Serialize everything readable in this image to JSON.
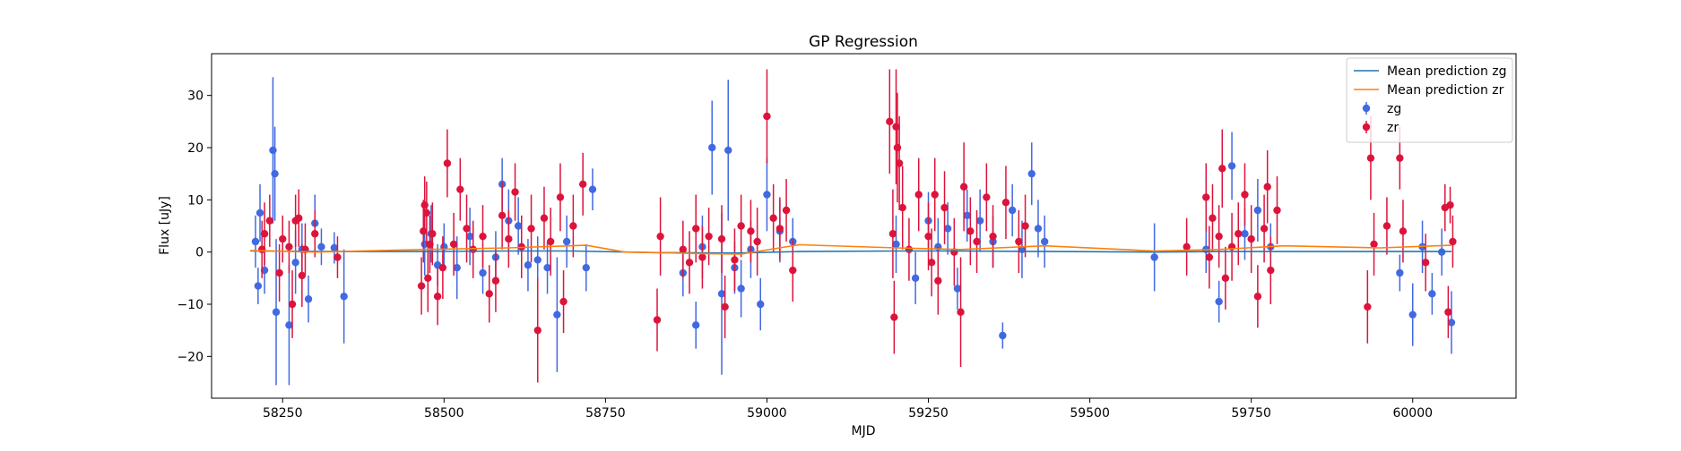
{
  "chart_data": {
    "type": "scatter",
    "title": "GP Regression",
    "xlabel": "MJD",
    "ylabel": "Flux [uJy]",
    "xlim": [
      58140,
      60160
    ],
    "ylim": [
      -28,
      38
    ],
    "x_ticks": [
      58250,
      58500,
      58750,
      59000,
      59250,
      59500,
      59750,
      60000
    ],
    "y_ticks": [
      -20,
      -10,
      0,
      10,
      20,
      30
    ],
    "grid": false,
    "legend_position": "top-right",
    "colors": {
      "zg_points": "#4169e1",
      "zr_points": "#dc143c",
      "zg_mean": "#1f77b4",
      "zr_mean": "#ff7f0e"
    },
    "legend": [
      {
        "label": "Mean prediction zg",
        "kind": "line",
        "color": "#1f77b4"
      },
      {
        "label": "Mean prediction zr",
        "kind": "line",
        "color": "#ff7f0e"
      },
      {
        "label": "zg",
        "kind": "errorbar",
        "color": "#4169e1"
      },
      {
        "label": "zr",
        "kind": "errorbar",
        "color": "#dc143c"
      }
    ],
    "mean_predictions": [
      {
        "name": "Mean prediction zg",
        "color": "#1f77b4",
        "x": [
          58200,
          58350,
          58470,
          58600,
          58700,
          58830,
          58950,
          59050,
          59200,
          59300,
          59450,
          59600,
          59700,
          59800,
          59950,
          60060
        ],
        "y": [
          0.2,
          0.1,
          0.1,
          0.2,
          0.2,
          -0.1,
          -0.2,
          0.1,
          0.2,
          0.2,
          0.1,
          0.0,
          0.1,
          0.1,
          0.1,
          0.1
        ]
      },
      {
        "name": "Mean prediction zr",
        "color": "#ff7f0e",
        "x": [
          58200,
          58300,
          58470,
          58600,
          58720,
          58780,
          58900,
          58960,
          59050,
          59200,
          59300,
          59430,
          59600,
          59700,
          59800,
          59950,
          60060
        ],
        "y": [
          0.3,
          0.0,
          0.5,
          0.8,
          1.3,
          0.0,
          -0.3,
          -0.4,
          1.4,
          0.8,
          0.5,
          1.2,
          0.2,
          0.5,
          1.2,
          0.8,
          1.3
        ]
      }
    ],
    "series": [
      {
        "name": "zg",
        "color": "#4169e1",
        "x": [
          58208,
          58212,
          58215,
          58222,
          58235,
          58238,
          58240,
          58260,
          58270,
          58280,
          58290,
          58300,
          58310,
          58330,
          58345,
          58470,
          58480,
          58490,
          58500,
          58520,
          58540,
          58560,
          58580,
          58590,
          58600,
          58615,
          58630,
          58645,
          58660,
          58675,
          58690,
          58720,
          58730,
          58870,
          58890,
          58900,
          58915,
          58930,
          58940,
          58950,
          58960,
          58975,
          58990,
          59000,
          59020,
          59040,
          59200,
          59230,
          59250,
          59265,
          59280,
          59295,
          59310,
          59330,
          59350,
          59365,
          59380,
          59395,
          59410,
          59420,
          59430,
          59600,
          59680,
          59700,
          59720,
          59740,
          59760,
          59780,
          59980,
          60000,
          60015,
          60030,
          60045,
          60060
        ],
        "y": [
          2.0,
          -6.5,
          7.5,
          -3.5,
          19.5,
          15.0,
          -11.5,
          -14.0,
          -2.0,
          0.5,
          -9.0,
          5.5,
          1.0,
          0.8,
          -8.5,
          1.5,
          3.5,
          -2.5,
          1.0,
          -3.0,
          3.0,
          -4.0,
          -1.0,
          13.0,
          6.0,
          5.0,
          -2.5,
          -1.5,
          -3.0,
          -12.0,
          2.0,
          -3.0,
          12.0,
          -4.0,
          -14.0,
          1.0,
          20.0,
          -8.0,
          19.5,
          -3.0,
          -7.0,
          0.5,
          -10.0,
          11.0,
          4.0,
          2.0,
          1.5,
          -5.0,
          6.0,
          1.0,
          4.5,
          -7.0,
          7.0,
          6.0,
          2.0,
          -16.0,
          8.0,
          0.5,
          15.0,
          4.5,
          2.0,
          -1.0,
          0.5,
          -9.5,
          16.5,
          3.5,
          8.0,
          1.0,
          -4.0,
          -12.0,
          1.0,
          -8.0,
          0.0,
          -13.5
        ],
        "yerr": [
          5.0,
          3.5,
          5.5,
          4.5,
          14.0,
          9.0,
          14.0,
          11.5,
          6.0,
          5.0,
          4.5,
          5.5,
          3.5,
          3.0,
          9.0,
          6.0,
          5.5,
          4.0,
          4.5,
          6.0,
          5.5,
          4.0,
          5.0,
          5.0,
          6.0,
          5.5,
          5.0,
          4.5,
          5.0,
          11.0,
          5.0,
          4.5,
          4.0,
          4.5,
          4.5,
          6.0,
          9.0,
          15.5,
          13.5,
          5.0,
          5.5,
          5.5,
          5.0,
          7.0,
          6.0,
          4.5,
          5.5,
          5.0,
          5.5,
          5.5,
          5.0,
          4.0,
          5.0,
          6.0,
          5.0,
          2.5,
          5.0,
          5.5,
          6.0,
          5.5,
          5.0,
          6.5,
          4.5,
          4.0,
          6.5,
          5.0,
          6.0,
          4.5,
          3.5,
          6.0,
          5.0,
          4.0,
          4.5,
          6.0
        ]
      },
      {
        "name": "zr",
        "color": "#dc143c",
        "x": [
          58218,
          58222,
          58230,
          58245,
          58250,
          58260,
          58265,
          58270,
          58275,
          58280,
          58285,
          58300,
          58335,
          58465,
          58468,
          58470,
          58473,
          58475,
          58478,
          58482,
          58490,
          58498,
          58505,
          58515,
          58525,
          58535,
          58545,
          58560,
          58570,
          58580,
          58590,
          58600,
          58610,
          58620,
          58635,
          58645,
          58655,
          58665,
          58680,
          58685,
          58700,
          58715,
          58830,
          58835,
          58870,
          58880,
          58890,
          58900,
          58910,
          58930,
          58935,
          58950,
          58960,
          58975,
          58985,
          59000,
          59010,
          59020,
          59030,
          59040,
          59190,
          59195,
          59197,
          59200,
          59202,
          59205,
          59210,
          59220,
          59235,
          59250,
          59255,
          59260,
          59265,
          59275,
          59290,
          59300,
          59305,
          59315,
          59325,
          59340,
          59350,
          59370,
          59390,
          59400,
          59650,
          59680,
          59685,
          59690,
          59700,
          59705,
          59710,
          59720,
          59730,
          59740,
          59750,
          59760,
          59770,
          59775,
          59780,
          59790,
          59930,
          59935,
          59940,
          59960,
          59980,
          59985,
          60020,
          60050,
          60055,
          60058,
          60062
        ],
        "y": [
          0.5,
          3.5,
          6.0,
          -4.0,
          2.5,
          1.0,
          -10.0,
          6.0,
          6.5,
          -4.5,
          0.5,
          3.5,
          -1.0,
          -6.5,
          4.0,
          9.0,
          7.5,
          -5.0,
          1.5,
          3.5,
          -8.5,
          -3.0,
          17.0,
          1.5,
          12.0,
          4.5,
          0.5,
          3.0,
          -8.0,
          -5.5,
          7.0,
          2.5,
          11.5,
          1.0,
          4.5,
          -15.0,
          6.5,
          2.0,
          10.5,
          -9.5,
          5.0,
          13.0,
          -13.0,
          3.0,
          0.5,
          -2.0,
          4.5,
          -1.0,
          3.0,
          2.5,
          -10.5,
          -1.5,
          5.0,
          4.0,
          2.0,
          26.0,
          6.5,
          4.5,
          8.0,
          -3.5,
          25.0,
          3.5,
          -12.5,
          24.0,
          20.0,
          17.0,
          8.5,
          0.5,
          11.0,
          3.0,
          -2.0,
          11.0,
          -5.5,
          8.5,
          0.0,
          -11.5,
          12.5,
          4.0,
          2.0,
          10.5,
          3.0,
          9.5,
          2.0,
          5.0,
          1.0,
          10.5,
          -1.0,
          6.5,
          3.0,
          16.0,
          -5.0,
          1.0,
          3.5,
          11.0,
          2.5,
          -8.5,
          4.5,
          12.5,
          -3.5,
          8.0,
          -10.5,
          18.0,
          1.5,
          5.0,
          18.0,
          4.0,
          -2.0,
          8.5,
          -11.5,
          9.0,
          2.0
        ],
        "yerr": [
          5.5,
          6.0,
          5.0,
          5.5,
          4.5,
          5.0,
          6.5,
          5.0,
          5.5,
          6.0,
          5.0,
          4.5,
          4.0,
          5.5,
          6.0,
          5.5,
          6.0,
          6.5,
          5.5,
          6.0,
          5.5,
          6.0,
          6.5,
          6.0,
          6.0,
          6.5,
          5.5,
          6.0,
          5.5,
          6.0,
          6.5,
          5.5,
          5.5,
          6.0,
          6.5,
          10.0,
          6.0,
          6.5,
          6.5,
          6.0,
          6.0,
          6.0,
          6.0,
          7.5,
          5.5,
          6.0,
          6.5,
          6.0,
          5.5,
          6.5,
          6.0,
          6.0,
          6.0,
          6.0,
          6.5,
          9.0,
          6.5,
          6.0,
          6.0,
          6.0,
          10.0,
          8.5,
          7.0,
          11.0,
          10.5,
          9.0,
          8.0,
          6.0,
          7.0,
          6.5,
          6.5,
          7.0,
          6.5,
          7.0,
          6.5,
          10.5,
          8.5,
          6.5,
          6.0,
          6.5,
          6.0,
          7.0,
          6.0,
          6.0,
          5.5,
          6.5,
          6.0,
          6.5,
          6.0,
          7.5,
          6.0,
          6.5,
          6.0,
          6.0,
          6.5,
          6.0,
          6.5,
          7.0,
          6.5,
          6.5,
          7.0,
          8.0,
          6.0,
          5.5,
          6.0,
          6.0,
          5.5,
          4.5,
          5.0,
          3.5,
          5.0
        ]
      }
    ]
  }
}
